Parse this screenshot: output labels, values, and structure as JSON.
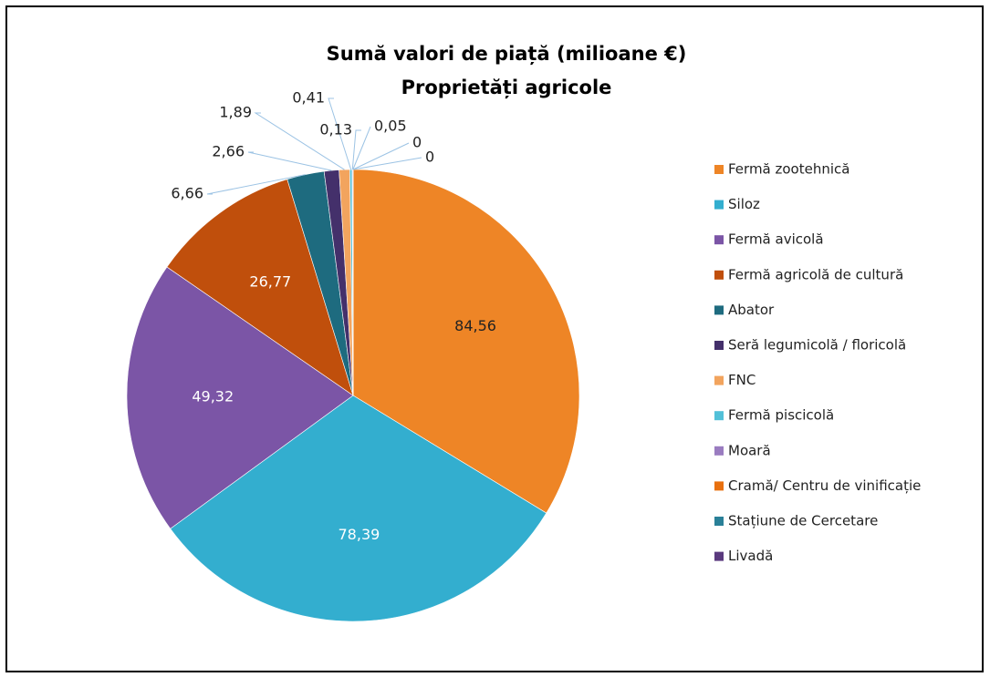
{
  "chart_data": {
    "type": "pie",
    "title": "Sumă valori de piață (milioane €)",
    "subtitle": "Proprietăți agricole",
    "categories": [
      "Fermă zootehnică",
      "Siloz",
      "Fermă avicolă",
      "Fermă agricolă de cultură",
      "Abator",
      "Seră legumicolă / floricolă",
      "FNC",
      "Fermă piscicolă",
      "Moară",
      "Cramă/ Centru de vinificație",
      "Stațiune de Cercetare",
      "Livadă"
    ],
    "values": [
      84.56,
      78.39,
      49.32,
      26.77,
      6.66,
      2.66,
      1.89,
      0.41,
      0.13,
      0.05,
      0,
      0
    ],
    "value_labels": [
      "84,56",
      "78,39",
      "49,32",
      "26,77",
      "6,66",
      "2,66",
      "1,89",
      "0,41",
      "0,13",
      "0,05",
      "0",
      "0"
    ],
    "colors": [
      "#ee8526",
      "#33aecf",
      "#7b55a6",
      "#c04f0c",
      "#1e6b7f",
      "#44306b",
      "#f2a45e",
      "#52c0d8",
      "#9a7cc0",
      "#e8700f",
      "#2a8098",
      "#5a3a7e"
    ],
    "legend": "right"
  }
}
